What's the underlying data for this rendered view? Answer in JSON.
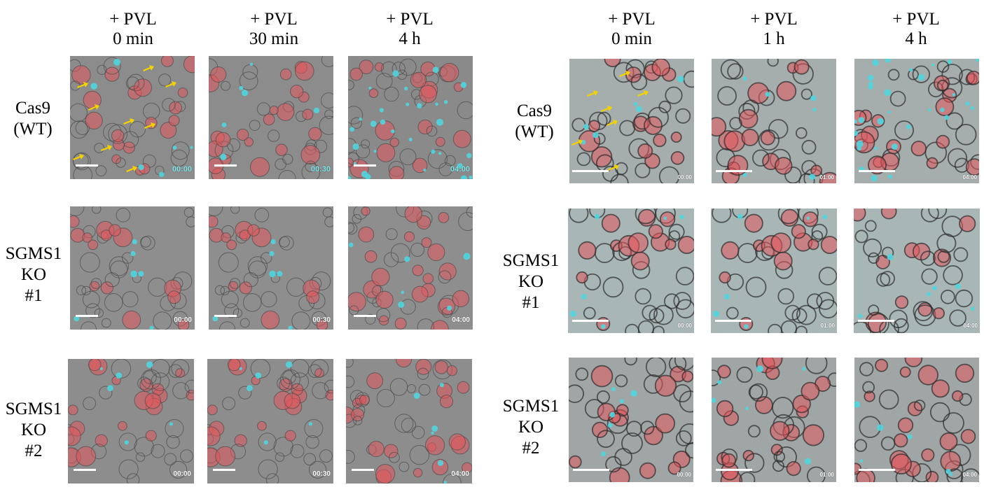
{
  "left_figure": {
    "column_headers": [
      "+ PVL\n0 min",
      "+ PVL\n30 min",
      "+ PVL\n4 h"
    ],
    "row_labels": [
      "Cas9\n(WT)",
      "SGMS1\nKO\n#1",
      "SGMS1\nKO\n#2"
    ],
    "timestamps": [
      [
        "00:00",
        "00:30",
        "04:00"
      ],
      [
        "00:00",
        "00:30",
        "04:00"
      ],
      [
        "00:00",
        "00:30",
        "04:00"
      ]
    ]
  },
  "right_figure": {
    "column_headers": [
      "+ PVL\n0 min",
      "+ PVL\n1 h",
      "+ PVL\n4 h"
    ],
    "row_labels": [
      "Cas9\n(WT)",
      "SGMS1\nKO\n#1",
      "SGMS1\nKO\n#2"
    ],
    "timestamps": [
      [
        "00:00",
        "01:00",
        "04:00"
      ],
      [
        "00:00",
        "01:00",
        "04:00"
      ],
      [
        "00:00",
        "01:00",
        "04:00"
      ]
    ]
  },
  "colors": {
    "background_gray": "#8a8a8a",
    "right_background_gray": "#a9b4b4",
    "cell_red": "#e2585c",
    "cell_cyan": "#4fd6df",
    "arrow_yellow": "#f3d200"
  }
}
